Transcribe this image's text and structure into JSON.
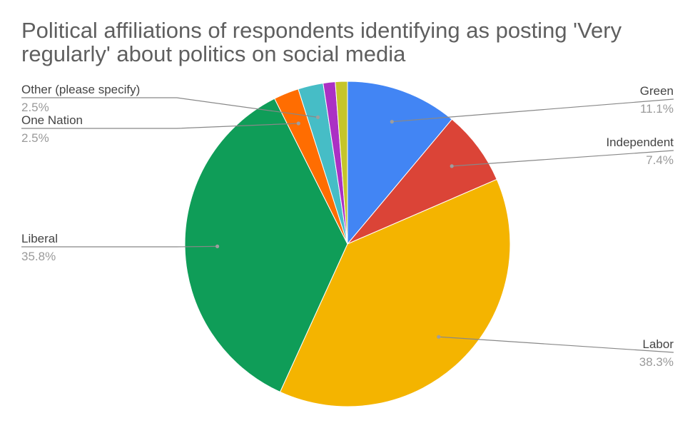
{
  "chart_data": {
    "type": "pie",
    "title": "Political affiliations of respondents identifying as posting 'Very regularly' about politics on social media",
    "slices": [
      {
        "label": "Green",
        "value": 11.1,
        "display": "11.1%",
        "color": "#4285F4"
      },
      {
        "label": "Independent",
        "value": 7.4,
        "display": "7.4%",
        "color": "#DB4437"
      },
      {
        "label": "Labor",
        "value": 38.3,
        "display": "38.3%",
        "color": "#F4B400"
      },
      {
        "label": "Liberal",
        "value": 35.8,
        "display": "35.8%",
        "color": "#0F9D58"
      },
      {
        "label": "One Nation",
        "value": 2.5,
        "display": "2.5%",
        "color": "#FF6D01"
      },
      {
        "label": "Other (please specify)",
        "value": 2.5,
        "display": "2.5%",
        "color": "#46BDC6"
      },
      {
        "label": "",
        "value": 1.2,
        "display": "",
        "color": "#AB30C4"
      },
      {
        "label": "",
        "value": 1.2,
        "display": "",
        "color": "#C5C52A"
      }
    ]
  }
}
